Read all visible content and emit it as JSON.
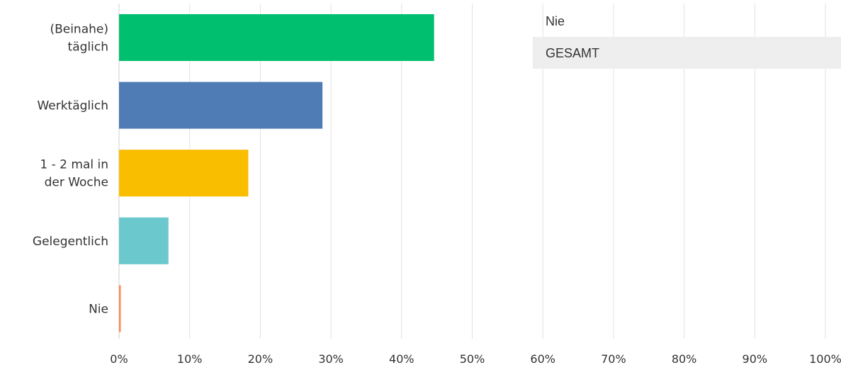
{
  "chart_data": {
    "type": "bar",
    "orientation": "horizontal",
    "categories": [
      "(Beinahe) täglich",
      "Werktäglich",
      "1 - 2 mal in der Woche",
      "Gelegentlich",
      "Nie"
    ],
    "category_lines": [
      [
        "(Beinahe)",
        "täglich"
      ],
      [
        "Werktäglich"
      ],
      [
        "1 - 2 mal in",
        "der Woche"
      ],
      [
        "Gelegentlich"
      ],
      [
        "Nie"
      ]
    ],
    "values": [
      44.6,
      28.8,
      18.3,
      7.0,
      0.2
    ],
    "colors": [
      "#00bf6f",
      "#507cb6",
      "#f9be00",
      "#6bc8cd",
      "#ff8b4f"
    ],
    "xlim": [
      0,
      100
    ],
    "xticks": [
      "0%",
      "10%",
      "20%",
      "30%",
      "40%",
      "50%",
      "60%",
      "70%",
      "80%",
      "90%",
      "100%"
    ],
    "grid": true,
    "title": "",
    "xlabel": "",
    "ylabel": ""
  },
  "tooltip": {
    "header": "Nie",
    "row_label": "GESAMT"
  }
}
